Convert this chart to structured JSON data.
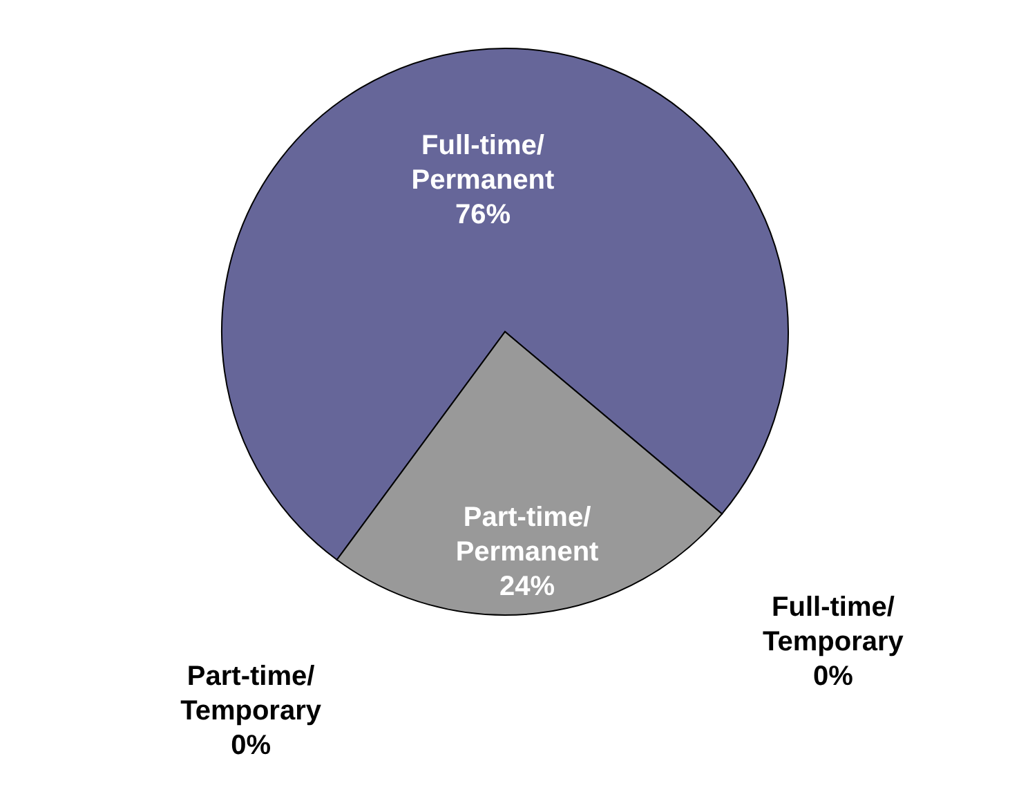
{
  "chart_data": {
    "type": "pie",
    "categories": [
      "Full-time/Permanent",
      "Full-time/Temporary",
      "Part-time/Permanent",
      "Part-time/Temporary"
    ],
    "values": [
      76,
      0,
      24,
      0
    ],
    "colors": [
      "#666699",
      "#660000",
      "#999999",
      "#669999"
    ],
    "value_labels": [
      "76%",
      "0%",
      "24%",
      "0%"
    ]
  }
}
